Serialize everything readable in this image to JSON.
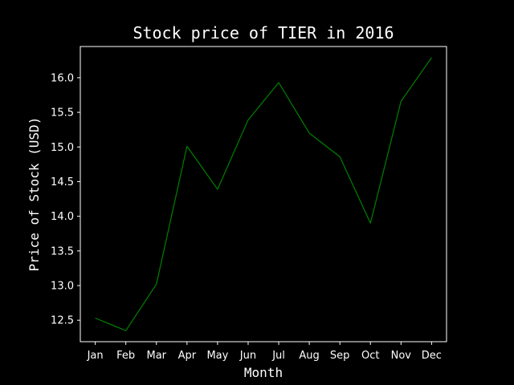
{
  "chart_data": {
    "type": "line",
    "title": "Stock price of TIER in 2016",
    "xlabel": "Month",
    "ylabel": "Price of Stock (USD)",
    "categories": [
      "Jan",
      "Feb",
      "Mar",
      "Apr",
      "May",
      "Jun",
      "Jul",
      "Aug",
      "Sep",
      "Oct",
      "Nov",
      "Dec"
    ],
    "series": [
      {
        "values": [
          12.53,
          12.35,
          13.02,
          15.01,
          14.39,
          15.39,
          15.93,
          15.2,
          14.86,
          13.9,
          15.66,
          16.29
        ],
        "color": "#008000"
      }
    ],
    "yticks": [
      12.5,
      13.0,
      13.5,
      14.0,
      14.5,
      15.0,
      15.5,
      16.0
    ],
    "ylim": [
      12.19,
      16.45
    ],
    "grid": false,
    "background": "#000000",
    "foreground": "#ffffff"
  }
}
